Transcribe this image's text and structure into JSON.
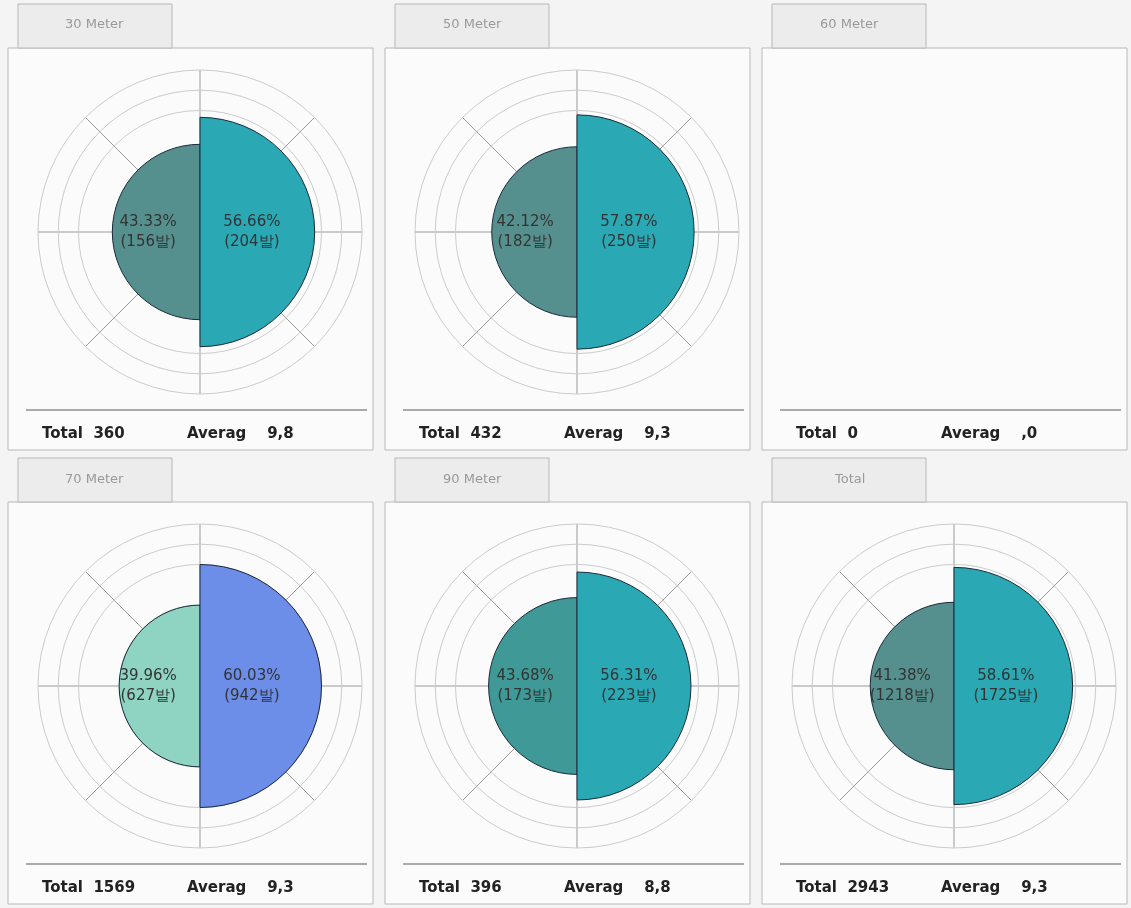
{
  "chart_data": [
    {
      "type": "other",
      "title": "30 Meter",
      "categories": [
        null,
        null
      ],
      "values": [
        43.33,
        56.66
      ],
      "colors": [
        "#55908e",
        "#2aa8b4"
      ],
      "value_labels": [
        "43.33%\n(156발)",
        "56.66%\n(204발)"
      ],
      "annotations": [
        "Total  360",
        "Averag    9,8"
      ]
    },
    {
      "type": "other",
      "title": "50 Meter",
      "categories": [
        null,
        null
      ],
      "values": [
        42.12,
        57.87
      ],
      "colors": [
        "#55908e",
        "#2aa8b4"
      ],
      "value_labels": [
        "42.12%\n(182발)",
        "57.87%\n(250발)"
      ],
      "annotations": [
        "Total  432",
        "Averag    9,3"
      ]
    },
    {
      "type": "other",
      "title": "60 Meter",
      "annotations": [
        "Total  0",
        "Averag    ,0"
      ]
    },
    {
      "type": "other",
      "title": "70 Meter",
      "categories": [
        null,
        null
      ],
      "values": [
        39.96,
        60.03
      ],
      "colors": [
        "#8fd3c3",
        "#6c8ee8"
      ],
      "value_labels": [
        "39.96%\n(627발)",
        "60.03%\n(942발)"
      ],
      "annotations": [
        "Total  1569",
        "Averag    9,3"
      ]
    },
    {
      "type": "other",
      "title": "90 Meter",
      "categories": [
        null,
        null
      ],
      "values": [
        43.68,
        56.31
      ],
      "colors": [
        "#3f9996",
        "#2aa8b4"
      ],
      "value_labels": [
        "43.68%\n(173발)",
        "56.31%\n(223발)"
      ],
      "annotations": [
        "Total  396",
        "Averag    8,8"
      ]
    },
    {
      "type": "other",
      "title": "Total",
      "categories": [
        null,
        null
      ],
      "values": [
        41.38,
        58.61
      ],
      "colors": [
        "#55908e",
        "#2aa8b4"
      ],
      "value_labels": [
        "41.38%\n(1218발)",
        "58.61%\n(1725발)"
      ],
      "annotations": [
        "Total  2943",
        "Averag    9,3"
      ]
    }
  ]
}
